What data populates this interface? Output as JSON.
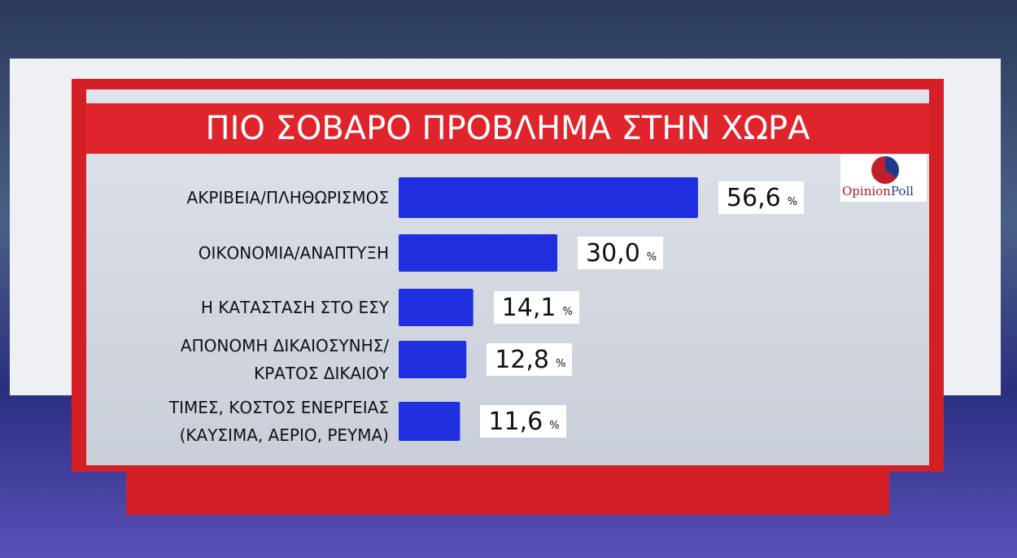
{
  "chart_data": {
    "type": "bar",
    "title": "ΠΙΟ ΣΟΒΑΡΟ ΠΡΟΒΛΗΜΑ ΣΤΗΝ ΧΩΡΑ",
    "categories": [
      "ΑΚΡΙΒΕΙΑ/ΠΛΗΘΩΡΙΣΜΟΣ",
      "ΟΙΚΟΝΟΜΙΑ/ΑΝΑΠΤΥΞΗ",
      "Η ΚΑΤΑΣΤΑΣΗ ΣΤΟ ΕΣΥ",
      "ΑΠΟΝΟΜΗ ΔΙΚΑΙΟΣΥΝΗΣ/\nΚΡΑΤΟΣ ΔΙΚΑΙΟΥ",
      "ΤΙΜΕΣ, ΚΟΣΤΟΣ ΕΝΕΡΓΕΙΑΣ\n(ΚΑΥΣΙΜΑ, ΑΕΡΙΟ, ΡΕΥΜΑ)"
    ],
    "values": [
      56.6,
      30.0,
      14.1,
      12.8,
      11.6
    ],
    "value_labels": [
      "56,6",
      "30,0",
      "14,1",
      "12,8",
      "11,6"
    ],
    "unit": "%",
    "color": "#1f2fe0",
    "logo": [
      "Opinion",
      "Poll"
    ]
  }
}
